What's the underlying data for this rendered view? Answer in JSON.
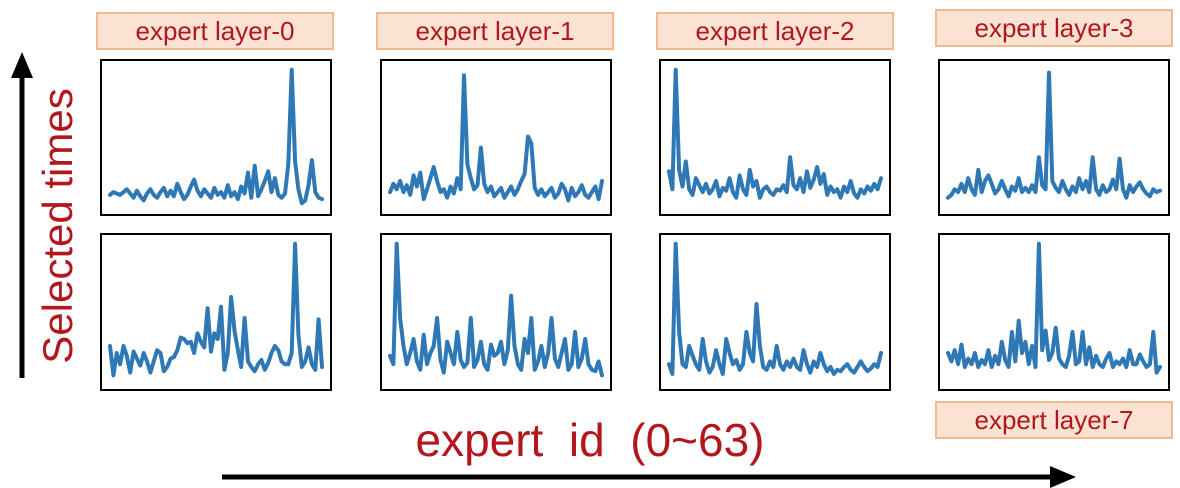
{
  "y_axis_label": "Selected times",
  "x_axis_label": "expert  id  (0~63)",
  "panel_labels": {
    "layer0": "expert layer-0",
    "layer1": "expert layer-1",
    "layer2": "expert layer-2",
    "layer3": "expert layer-3",
    "layer7": "expert layer-7"
  },
  "colors": {
    "series": "#2e78b5",
    "label_text": "#b3161c",
    "label_bg": "#fbe3d4",
    "label_border": "#f2b98e",
    "axis_arrow": "#000000"
  },
  "chart_data": [
    {
      "type": "line",
      "title": "expert layer-0",
      "xlabel": "expert id (0~63)",
      "ylabel": "Selected times",
      "x_range": [
        0,
        63
      ],
      "ylim": [
        0,
        1
      ],
      "grid": false,
      "legend": "none",
      "values": [
        0.08,
        0.1,
        0.09,
        0.08,
        0.1,
        0.12,
        0.09,
        0.06,
        0.11,
        0.07,
        0.04,
        0.09,
        0.12,
        0.08,
        0.06,
        0.1,
        0.13,
        0.07,
        0.11,
        0.07,
        0.16,
        0.1,
        0.05,
        0.08,
        0.14,
        0.19,
        0.11,
        0.07,
        0.12,
        0.09,
        0.06,
        0.13,
        0.08,
        0.1,
        0.06,
        0.15,
        0.07,
        0.1,
        0.05,
        0.14,
        0.09,
        0.24,
        0.06,
        0.29,
        0.07,
        0.12,
        0.18,
        0.25,
        0.1,
        0.2,
        0.08,
        0.06,
        0.09,
        0.3,
        0.98,
        0.32,
        0.12,
        0.02,
        0.04,
        0.15,
        0.33,
        0.1,
        0.06,
        0.05
      ]
    },
    {
      "type": "line",
      "title": "expert layer-1",
      "xlabel": "expert id (0~63)",
      "ylabel": "Selected times",
      "x_range": [
        0,
        63
      ],
      "ylim": [
        0,
        1
      ],
      "grid": false,
      "legend": "none",
      "values": [
        0.1,
        0.16,
        0.12,
        0.18,
        0.1,
        0.15,
        0.08,
        0.22,
        0.14,
        0.24,
        0.05,
        0.12,
        0.2,
        0.28,
        0.18,
        0.1,
        0.12,
        0.06,
        0.14,
        0.09,
        0.2,
        0.12,
        0.94,
        0.3,
        0.2,
        0.12,
        0.15,
        0.42,
        0.16,
        0.1,
        0.14,
        0.07,
        0.1,
        0.13,
        0.06,
        0.1,
        0.14,
        0.08,
        0.12,
        0.18,
        0.23,
        0.5,
        0.45,
        0.13,
        0.08,
        0.12,
        0.07,
        0.1,
        0.13,
        0.06,
        0.09,
        0.16,
        0.12,
        0.04,
        0.13,
        0.07,
        0.1,
        0.15,
        0.08,
        0.06,
        0.1,
        0.14,
        0.05,
        0.18
      ]
    },
    {
      "type": "line",
      "title": "expert layer-2",
      "xlabel": "expert id (0~63)",
      "ylabel": "Selected times",
      "x_range": [
        0,
        63
      ],
      "ylim": [
        0,
        1
      ],
      "grid": false,
      "legend": "none",
      "values": [
        0.25,
        0.12,
        0.98,
        0.26,
        0.14,
        0.32,
        0.12,
        0.08,
        0.2,
        0.15,
        0.1,
        0.16,
        0.09,
        0.12,
        0.18,
        0.07,
        0.13,
        0.11,
        0.2,
        0.1,
        0.06,
        0.22,
        0.12,
        0.08,
        0.26,
        0.14,
        0.18,
        0.06,
        0.12,
        0.14,
        0.1,
        0.08,
        0.12,
        0.11,
        0.15,
        0.1,
        0.35,
        0.15,
        0.12,
        0.2,
        0.1,
        0.25,
        0.13,
        0.19,
        0.28,
        0.16,
        0.23,
        0.08,
        0.14,
        0.1,
        0.12,
        0.06,
        0.14,
        0.1,
        0.18,
        0.09,
        0.06,
        0.12,
        0.09,
        0.14,
        0.11,
        0.16,
        0.12,
        0.2
      ]
    },
    {
      "type": "line",
      "title": "expert layer-3",
      "xlabel": "expert id (0~63)",
      "ylabel": "Selected times",
      "x_range": [
        0,
        63
      ],
      "ylim": [
        0,
        1
      ],
      "grid": false,
      "legend": "none",
      "values": [
        0.06,
        0.08,
        0.12,
        0.1,
        0.16,
        0.1,
        0.2,
        0.12,
        0.08,
        0.26,
        0.1,
        0.18,
        0.22,
        0.16,
        0.09,
        0.12,
        0.18,
        0.12,
        0.07,
        0.14,
        0.11,
        0.2,
        0.1,
        0.13,
        0.1,
        0.15,
        0.1,
        0.35,
        0.15,
        0.12,
        0.96,
        0.18,
        0.13,
        0.1,
        0.18,
        0.12,
        0.08,
        0.14,
        0.1,
        0.2,
        0.12,
        0.18,
        0.1,
        0.35,
        0.12,
        0.08,
        0.15,
        0.1,
        0.12,
        0.19,
        0.12,
        0.34,
        0.12,
        0.06,
        0.15,
        0.1,
        0.14,
        0.17,
        0.12,
        0.09,
        0.07,
        0.12,
        0.1,
        0.11
      ]
    },
    {
      "type": "line",
      "title": "",
      "xlabel": "expert id (0~63)",
      "ylabel": "Selected times",
      "x_range": [
        0,
        63
      ],
      "ylim": [
        0,
        1
      ],
      "grid": false,
      "legend": "none",
      "values": [
        0.25,
        0.04,
        0.2,
        0.12,
        0.25,
        0.18,
        0.06,
        0.21,
        0.16,
        0.11,
        0.2,
        0.14,
        0.06,
        0.14,
        0.22,
        0.2,
        0.07,
        0.1,
        0.16,
        0.17,
        0.22,
        0.31,
        0.3,
        0.27,
        0.28,
        0.2,
        0.34,
        0.28,
        0.24,
        0.52,
        0.21,
        0.34,
        0.3,
        0.53,
        0.08,
        0.2,
        0.6,
        0.36,
        0.22,
        0.1,
        0.45,
        0.14,
        0.1,
        0.07,
        0.12,
        0.15,
        0.08,
        0.13,
        0.2,
        0.25,
        0.22,
        0.14,
        0.12,
        0.12,
        0.2,
        0.98,
        0.33,
        0.1,
        0.14,
        0.24,
        0.12,
        0.08,
        0.44,
        0.1
      ]
    },
    {
      "type": "line",
      "title": "",
      "xlabel": "expert id (0~63)",
      "ylabel": "Selected times",
      "x_range": [
        0,
        63
      ],
      "ylim": [
        0,
        1
      ],
      "grid": false,
      "legend": "none",
      "values": [
        0.18,
        0.12,
        0.98,
        0.45,
        0.25,
        0.12,
        0.2,
        0.3,
        0.14,
        0.08,
        0.33,
        0.12,
        0.2,
        0.25,
        0.45,
        0.15,
        0.06,
        0.28,
        0.2,
        0.12,
        0.35,
        0.15,
        0.1,
        0.13,
        0.45,
        0.1,
        0.15,
        0.28,
        0.12,
        0.08,
        0.26,
        0.18,
        0.2,
        0.28,
        0.12,
        0.22,
        0.61,
        0.25,
        0.12,
        0.08,
        0.3,
        0.2,
        0.45,
        0.08,
        0.14,
        0.25,
        0.1,
        0.2,
        0.45,
        0.16,
        0.1,
        0.2,
        0.3,
        0.08,
        0.12,
        0.35,
        0.1,
        0.16,
        0.3,
        0.12,
        0.08,
        0.07,
        0.14,
        0.04
      ]
    },
    {
      "type": "line",
      "title": "",
      "xlabel": "expert id (0~63)",
      "ylabel": "Selected times",
      "x_range": [
        0,
        63
      ],
      "ylim": [
        0,
        1
      ],
      "grid": false,
      "legend": "none",
      "values": [
        0.12,
        0.05,
        0.98,
        0.35,
        0.12,
        0.1,
        0.25,
        0.18,
        0.12,
        0.08,
        0.3,
        0.14,
        0.06,
        0.1,
        0.22,
        0.12,
        0.05,
        0.3,
        0.2,
        0.12,
        0.15,
        0.08,
        0.12,
        0.35,
        0.2,
        0.14,
        0.55,
        0.25,
        0.1,
        0.08,
        0.14,
        0.1,
        0.25,
        0.12,
        0.08,
        0.14,
        0.1,
        0.16,
        0.1,
        0.08,
        0.22,
        0.12,
        0.06,
        0.14,
        0.1,
        0.2,
        0.12,
        0.07,
        0.1,
        0.05,
        0.08,
        0.07,
        0.1,
        0.12,
        0.08,
        0.06,
        0.1,
        0.14,
        0.1,
        0.07,
        0.09,
        0.12,
        0.1,
        0.2
      ]
    },
    {
      "type": "line",
      "title": "expert layer-7",
      "xlabel": "expert id (0~63)",
      "ylabel": "Selected times",
      "x_range": [
        0,
        63
      ],
      "ylim": [
        0,
        1
      ],
      "grid": false,
      "legend": "none",
      "values": [
        0.2,
        0.14,
        0.22,
        0.12,
        0.26,
        0.1,
        0.16,
        0.12,
        0.2,
        0.1,
        0.15,
        0.12,
        0.22,
        0.1,
        0.18,
        0.12,
        0.28,
        0.15,
        0.1,
        0.35,
        0.14,
        0.43,
        0.2,
        0.28,
        0.12,
        0.25,
        0.1,
        0.98,
        0.22,
        0.36,
        0.15,
        0.2,
        0.38,
        0.16,
        0.12,
        0.1,
        0.18,
        0.35,
        0.12,
        0.14,
        0.35,
        0.12,
        0.24,
        0.1,
        0.18,
        0.12,
        0.1,
        0.16,
        0.2,
        0.1,
        0.14,
        0.12,
        0.16,
        0.1,
        0.22,
        0.12,
        0.12,
        0.19,
        0.14,
        0.1,
        0.12,
        0.35,
        0.06,
        0.1
      ]
    }
  ]
}
